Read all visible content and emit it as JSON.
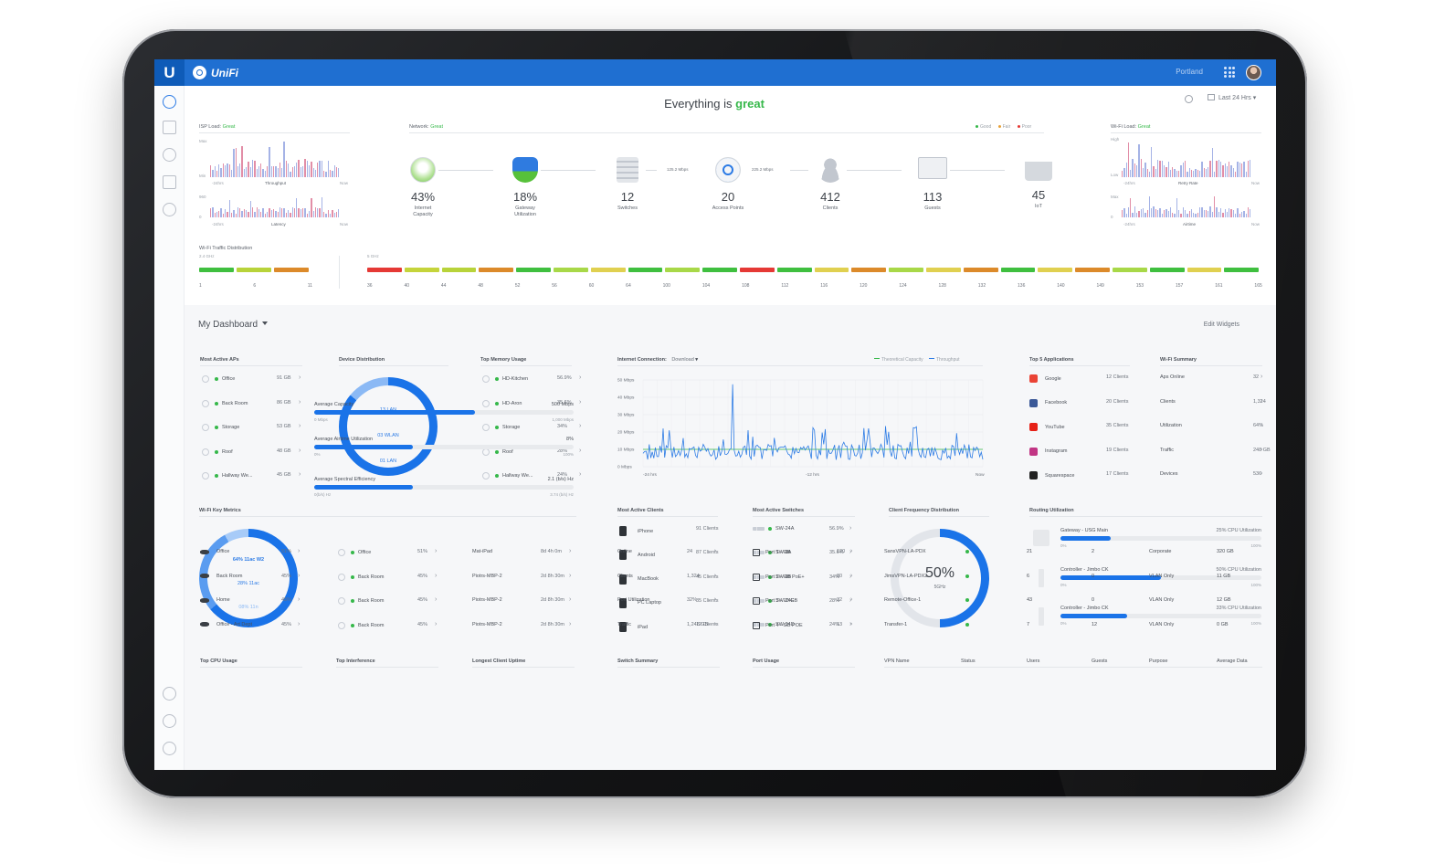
{
  "header": {
    "brand": "UniFi",
    "site": "Portland",
    "logo": "U"
  },
  "title": {
    "prefix": "Everything is",
    "status": "great"
  },
  "range": "Last 24 Hrs",
  "isp": {
    "label": "ISP Load:",
    "status": "Great",
    "throughput": "Throughput",
    "latency": "Latency",
    "max": "Max",
    "min": "Min",
    "left": "-24hrs",
    "right": "Now",
    "lat_max": "960",
    "lat_min": "0"
  },
  "network": {
    "label": "Network:",
    "status": "Great",
    "legend": [
      "Good",
      "Fair",
      "Poor"
    ],
    "speeds": [
      "125.2 Mbps",
      "225.2 Mbps"
    ],
    "items": [
      {
        "value": "43%",
        "label": "Internet",
        "sub": "Capacity"
      },
      {
        "value": "18%",
        "label": "Gateway",
        "sub": "Utilization"
      },
      {
        "value": "12",
        "label": "Switches",
        "sub": ""
      },
      {
        "value": "20",
        "label": "Access Points",
        "sub": ""
      },
      {
        "value": "412",
        "label": "Clients",
        "sub": ""
      },
      {
        "value": "113",
        "label": "Guests",
        "sub": ""
      },
      {
        "value": "45",
        "label": "IoT",
        "sub": ""
      }
    ]
  },
  "wifi_load": {
    "label": "Wi-Fi Load:",
    "status": "Great",
    "retry": "Retry Rate",
    "airtime": "Airtime",
    "high": "High",
    "low": "Low",
    "max": "Max",
    "zero": "0",
    "left": "-24hrs",
    "right": "Now"
  },
  "traffic": {
    "label": "Wi-Fi Traffic Distribution",
    "band24": "2.4 GHz",
    "band5": "5 GHz",
    "ch24": [
      "1",
      "6",
      "11"
    ],
    "ch24_colors": [
      "#3fbf3f",
      "#b8d33a",
      "#dc8a2a"
    ],
    "ch5": [
      "36",
      "40",
      "44",
      "48",
      "52",
      "56",
      "60",
      "64",
      "100",
      "104",
      "108",
      "112",
      "116",
      "120",
      "124",
      "128",
      "132",
      "136",
      "140",
      "149",
      "153",
      "157",
      "161",
      "165"
    ],
    "ch5_colors": [
      "#e53935",
      "#c5d43b",
      "#b8d33a",
      "#dc8a2a",
      "#3fbf3f",
      "#a8d848",
      "#e0d050",
      "#3fbf3f",
      "#a8d848",
      "#3fbf3f",
      "#e53935",
      "#3fbf3f",
      "#e0d050",
      "#dc8a2a",
      "#a8d848",
      "#e0d050",
      "#dc8a2a",
      "#3fbf3f",
      "#e0d050",
      "#dc8a2a",
      "#a8d848",
      "#3fbf3f",
      "#e0d050",
      "#3fbf3f"
    ]
  },
  "dashboard": {
    "title": "My Dashboard",
    "edit": "Edit Widgets"
  },
  "active_aps": {
    "title": "Most Active APs",
    "rows": [
      {
        "name": "Office",
        "value": "91 GB"
      },
      {
        "name": "Back Room",
        "value": "86 GB"
      },
      {
        "name": "Storage",
        "value": "53 GB"
      },
      {
        "name": "Roof",
        "value": "48 GB"
      },
      {
        "name": "Hallway We...",
        "value": "45 GB"
      }
    ]
  },
  "device_dist": {
    "title": "Device Distribution",
    "labels": [
      "13 LAN",
      "03 WLAN",
      "01 LAN"
    ]
  },
  "top_memory": {
    "title": "Top Memory Usage",
    "rows": [
      {
        "name": "HD-Kitchen",
        "value": "56.9%"
      },
      {
        "name": "HD-Aron",
        "value": "35.6%"
      },
      {
        "name": "Storage",
        "value": "34%"
      },
      {
        "name": "Roof",
        "value": "28%"
      },
      {
        "name": "Hallway We...",
        "value": "24%"
      }
    ]
  },
  "internet_conn": {
    "title": "Internet Connection:",
    "mode": "Download",
    "legend": [
      "Theoretical Capacity",
      "Throughput"
    ],
    "y_ticks": [
      "50 Mbps",
      "40 Mbps",
      "30 Mbps",
      "20 Mbps",
      "10 Mbps",
      "0 Mbps"
    ],
    "x_ticks": [
      "-24 hrs",
      "-12 hrs",
      "Now"
    ]
  },
  "top_apps": {
    "title": "Top 5 Applications",
    "rows": [
      {
        "name": "Google",
        "value": "12 Clients",
        "color": "#ea4335"
      },
      {
        "name": "Facebook",
        "value": "20 Clients",
        "color": "#3b5998"
      },
      {
        "name": "YouTube",
        "value": "35 Clients",
        "color": "#e62117"
      },
      {
        "name": "Instagram",
        "value": "19 Clients",
        "color": "#c13584"
      },
      {
        "name": "Squarespace",
        "value": "17 Clients",
        "color": "#222222"
      }
    ]
  },
  "wifi_summary": {
    "title": "Wi-Fi Summary",
    "rows": [
      {
        "name": "Aps Online",
        "value": "32"
      },
      {
        "name": "Clients",
        "value": "1,324"
      },
      {
        "name": "Utilization",
        "value": "64%"
      },
      {
        "name": "Traffic",
        "value": "248 GB"
      },
      {
        "name": "Devices",
        "value": "536"
      }
    ]
  },
  "wifi_key": {
    "title": "Wi-Fi Key Metrics",
    "donut": [
      "64% 11ac W2",
      "28% 11ac",
      "08% 11n"
    ],
    "metrics": [
      {
        "name": "Average Capacity",
        "value": "500 Mbps",
        "min": "0 Mbps",
        "max": "1,000 Mbps",
        "fill": 0.62
      },
      {
        "name": "Average Airtime Utilization",
        "value": "8%",
        "min": "0%",
        "max": "100%",
        "fill": 0.38
      },
      {
        "name": "Average Spectral Efficiency",
        "value": "2.1 (b/s) Hz",
        "min": "0(b/s) Hz",
        "max": "3.74 (b/s) Hz",
        "fill": 0.38
      }
    ]
  },
  "active_clients": {
    "title": "Most Active Clients",
    "rows": [
      {
        "name": "iPhone",
        "value": "91 Clients"
      },
      {
        "name": "Android",
        "value": "87 Clients"
      },
      {
        "name": "MacBook",
        "value": "45 Clients"
      },
      {
        "name": "PC Laptop",
        "value": "35 Clients"
      },
      {
        "name": "iPad",
        "value": "12 Clients"
      }
    ]
  },
  "active_switches": {
    "title": "Most Active Switches",
    "rows": [
      {
        "name": "SW-24A",
        "value": "56.9%"
      },
      {
        "name": "SW-8A",
        "value": "35.6%"
      },
      {
        "name": "SW-8B",
        "value": "34%"
      },
      {
        "name": "SW-24E",
        "value": "28%"
      },
      {
        "name": "SW-24D",
        "value": "24%"
      }
    ]
  },
  "client_freq": {
    "title": "Client Frequency Distribution",
    "value": "50%",
    "band": "5GHz",
    "fill": 0.5
  },
  "routing": {
    "title": "Routing Utilization",
    "rows": [
      {
        "name": "Gateway - USG Main",
        "value": "25% CPU Utilization",
        "min": "0%",
        "max": "100%",
        "fill": 0.25
      },
      {
        "name": "Controller - Jimbo CK",
        "value": "50% CPU Utilization",
        "min": "0%",
        "max": "100%",
        "fill": 0.5
      },
      {
        "name": "Controller - Jimbo CK",
        "value": "33% CPU Utilization",
        "min": "0%",
        "max": "100%",
        "fill": 0.33
      }
    ]
  },
  "top_cpu": {
    "title": "Top CPU Usage",
    "rows": [
      {
        "name": "Office",
        "value": "51%"
      },
      {
        "name": "Back Room",
        "value": "45%"
      },
      {
        "name": "Home",
        "value": "45%"
      },
      {
        "name": "Office - Art Dept",
        "value": "45%"
      }
    ]
  },
  "top_interference": {
    "title": "Top Interference",
    "rows": [
      {
        "name": "Office",
        "value": "51%"
      },
      {
        "name": "Back Room",
        "value": "45%"
      },
      {
        "name": "Back Room",
        "value": "45%"
      },
      {
        "name": "Back Room",
        "value": "45%"
      }
    ]
  },
  "longest_uptime": {
    "title": "Longest Client Uptime",
    "rows": [
      {
        "name": "Mat-iPad",
        "value": "8d 4h 0m"
      },
      {
        "name": "Piotrs-MBP-2",
        "value": "2d 8h 30m"
      },
      {
        "name": "Piotrs-MBP-2",
        "value": "2d 8h 30m"
      },
      {
        "name": "Piotrs-MBP-2",
        "value": "2d 8h 30m"
      }
    ]
  },
  "switch_summary": {
    "title": "Switch Summary",
    "rows": [
      {
        "name": "Online",
        "value": "24"
      },
      {
        "name": "Clients",
        "value": "1,324"
      },
      {
        "name": "Port Utilization",
        "value": "32%"
      },
      {
        "name": "Traffic",
        "value": "1,248 GB"
      }
    ]
  },
  "port_usage": {
    "title": "Port Usage",
    "rows": [
      {
        "name": "Port 1 - GB",
        "value": "120"
      },
      {
        "name": "Port 2 - GB PoE+",
        "value": "80"
      },
      {
        "name": "Port 3 - 10 GB",
        "value": "32"
      },
      {
        "name": "Port 4 - GB POE",
        "value": "13"
      }
    ]
  },
  "vpn": {
    "headers": [
      "VPN Name",
      "Status",
      "Users",
      "Guests",
      "Purpose",
      "Average Data"
    ],
    "rows": [
      {
        "name": "SansVPN-LA-PDX",
        "users": "21",
        "guests": "2",
        "purpose": "Corporate",
        "data": "320 GB"
      },
      {
        "name": "JimsVPN-LA-PDX2",
        "users": "6",
        "guests": "0",
        "purpose": "VLAN Only",
        "data": "11 GB"
      },
      {
        "name": "Remote-Office-1",
        "users": "43",
        "guests": "0",
        "purpose": "VLAN Only",
        "data": "12 GB"
      },
      {
        "name": "Transfer-1",
        "users": "7",
        "guests": "12",
        "purpose": "VLAN Only",
        "data": "0 GB"
      }
    ]
  },
  "colors": {
    "accent": "#1f6fd1",
    "good": "#36b84a",
    "chart": "#2c7be5"
  }
}
